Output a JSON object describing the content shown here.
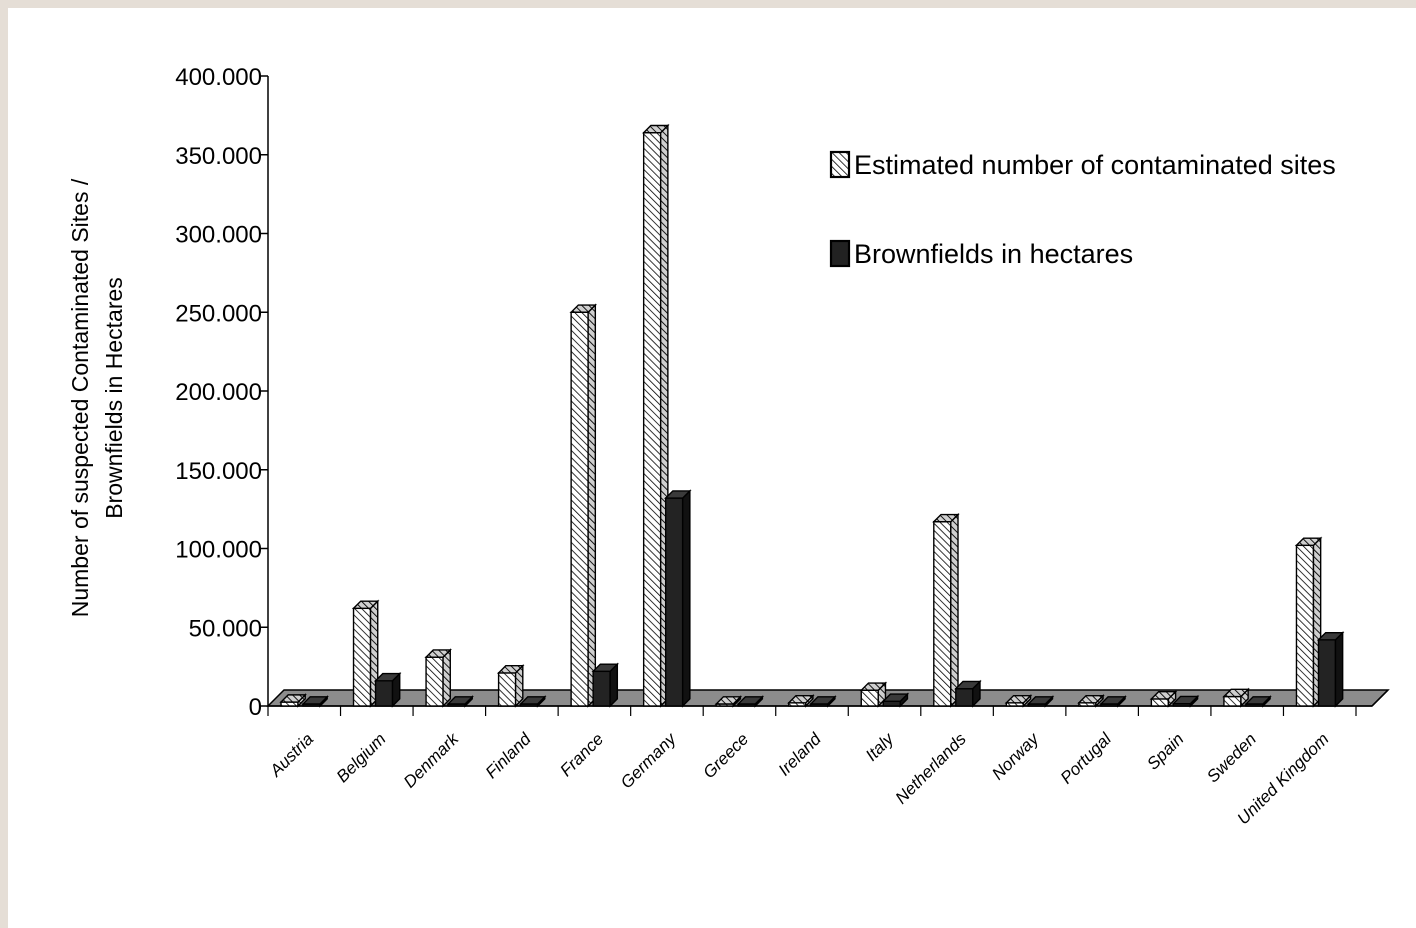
{
  "chart_data": {
    "type": "bar",
    "title": "",
    "ylabel_lines": [
      "Number of suspected Contaminated Sites /",
      "Brownfields in Hectares"
    ],
    "xlabel": "",
    "ylim": [
      0,
      400000
    ],
    "yticks": [
      0,
      50000,
      100000,
      150000,
      200000,
      250000,
      300000,
      350000,
      400000
    ],
    "ytick_labels": [
      "0",
      "50.000",
      "100.000",
      "150.000",
      "200.000",
      "250.000",
      "300.000",
      "350.000",
      "400.000"
    ],
    "categories": [
      "Austria",
      "Belgium",
      "Denmark",
      "Finland",
      "France",
      "Germany",
      "Greece",
      "Ireland",
      "Italy",
      "Netherlands",
      "Norway",
      "Portugal",
      "Spain",
      "Sweden",
      "United Kingdom"
    ],
    "series": [
      {
        "name": "Estimated number of contaminated sites",
        "values": [
          2500,
          62000,
          31000,
          21000,
          250000,
          364000,
          500,
          2000,
          10000,
          117000,
          2000,
          2000,
          4500,
          6000,
          102000
        ],
        "color": "#ffffff",
        "pattern": "hatched"
      },
      {
        "name": "Brownfields in hectares",
        "values": [
          1000,
          16000,
          500,
          500,
          22000,
          132000,
          500,
          1000,
          3000,
          11000,
          500,
          500,
          1500,
          500,
          42000
        ],
        "color": "#222222",
        "pattern": "solid"
      }
    ],
    "grid": false,
    "legend_position": "top-right",
    "perspective": "3d"
  }
}
